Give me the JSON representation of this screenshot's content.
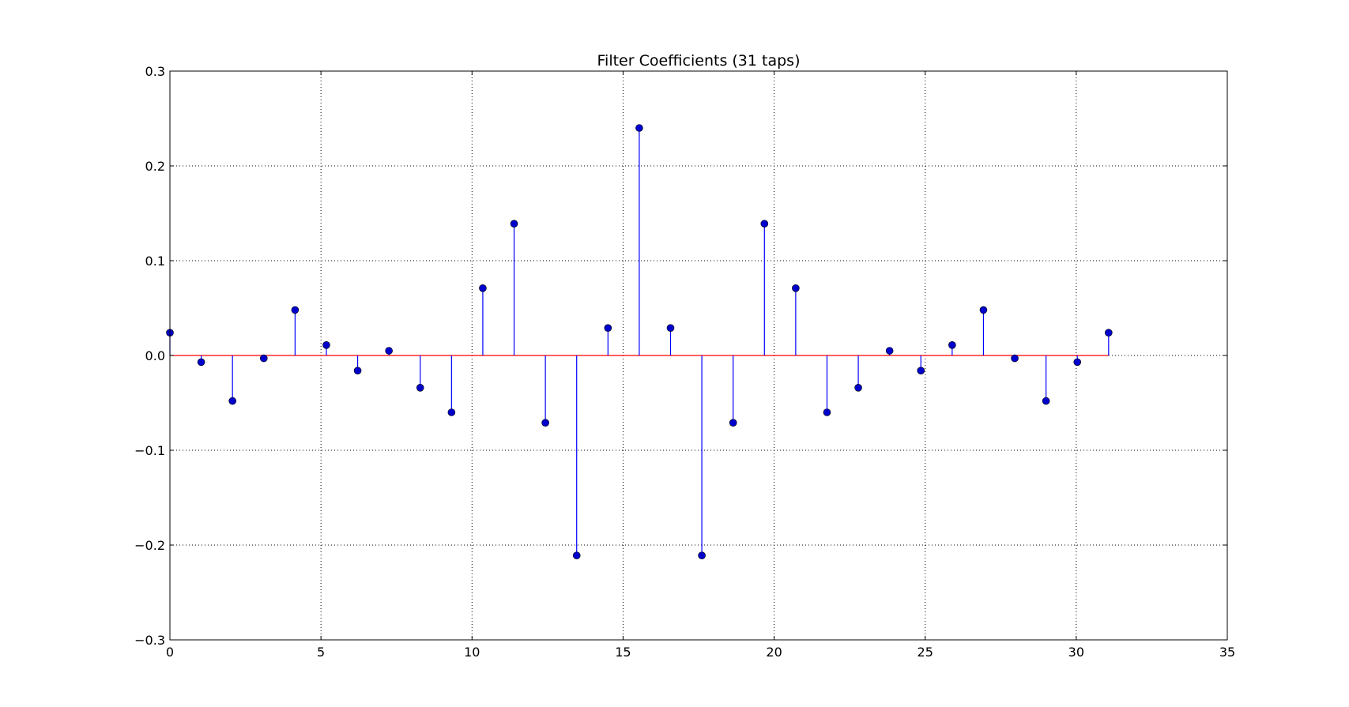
{
  "chart_data": {
    "type": "stem",
    "title": "Filter Coefficients (31 taps)",
    "xlabel": "",
    "ylabel": "",
    "xlim": [
      0,
      35
    ],
    "ylim": [
      -0.3,
      0.3
    ],
    "xticks": [
      0,
      5,
      10,
      15,
      20,
      25,
      30,
      35
    ],
    "yticks": [
      -0.3,
      -0.2,
      -0.1,
      0.0,
      0.1,
      0.2,
      0.3
    ],
    "xtick_labels": [
      "0",
      "5",
      "10",
      "15",
      "20",
      "25",
      "30",
      "35"
    ],
    "ytick_labels": [
      "−0.3",
      "−0.2",
      "−0.1",
      "0.0",
      "0.1",
      "0.2",
      "0.3"
    ],
    "grid": true,
    "x": [
      0,
      1.0357,
      2.0714,
      3.1071,
      4.1429,
      5.1786,
      6.2143,
      7.25,
      8.2857,
      9.3214,
      10.3571,
      11.3929,
      12.4286,
      13.4643,
      14.5,
      15.5357,
      16.5714,
      17.6071,
      18.6429,
      19.6786,
      20.7143,
      21.75,
      22.7857,
      23.8214,
      24.8571,
      25.8929,
      26.9286,
      27.9643,
      29.0,
      30.0357,
      31.0714
    ],
    "values": [
      0.024,
      -0.007,
      -0.048,
      -0.003,
      0.048,
      0.011,
      -0.016,
      0.005,
      -0.034,
      -0.06,
      0.071,
      0.139,
      -0.071,
      -0.211,
      0.029,
      0.24,
      0.029,
      -0.211,
      -0.071,
      0.139,
      0.071,
      -0.06,
      -0.034,
      0.005,
      -0.016,
      0.011,
      0.048,
      -0.003,
      -0.048,
      -0.007,
      0.024
    ],
    "baseline": 0.0,
    "colors": {
      "stem": "#0000ff",
      "marker": "#0000cc",
      "baseline": "#ff0000",
      "grid": "#000000",
      "axes": "#000000"
    }
  }
}
